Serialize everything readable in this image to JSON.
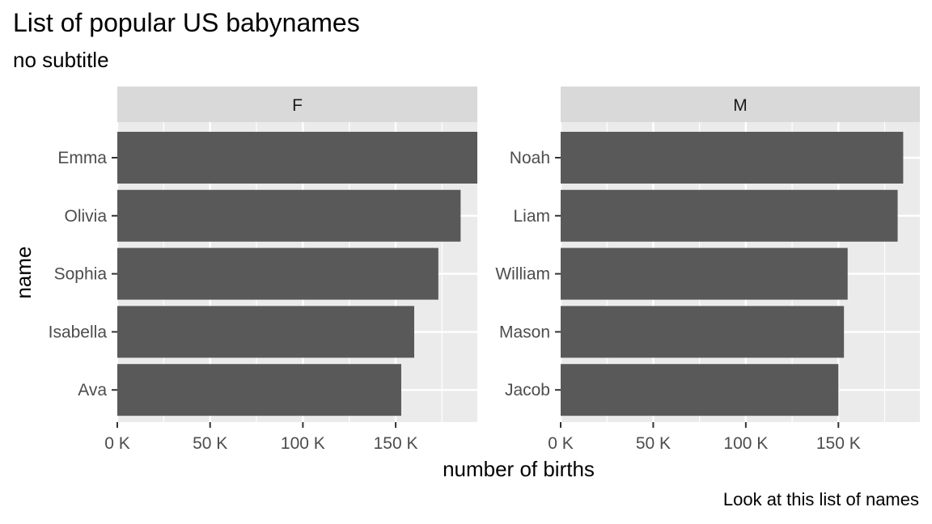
{
  "chart_data": {
    "type": "bar",
    "orientation": "horizontal",
    "title": "List of popular US babynames",
    "subtitle": "no subtitle",
    "caption": "Look at this list of names",
    "xlabel": "number of births",
    "ylabel": "name",
    "xlim": [
      0,
      194000
    ],
    "x_ticks": [
      0,
      50000,
      100000,
      150000
    ],
    "x_tick_labels": [
      "0 K",
      "50 K",
      "100 K",
      "150 K"
    ],
    "grid": true,
    "legend": "none",
    "colors": {
      "bar": "#595959",
      "panel": "#ebebeb",
      "strip": "#d9d9d9",
      "grid": "#ffffff"
    },
    "facets": [
      {
        "label": "F",
        "categories": [
          "Emma",
          "Olivia",
          "Sophia",
          "Isabella",
          "Ava"
        ],
        "values": [
          194000,
          185000,
          173000,
          160000,
          153000
        ]
      },
      {
        "label": "M",
        "categories": [
          "Noah",
          "Liam",
          "William",
          "Mason",
          "Jacob"
        ],
        "values": [
          185000,
          182000,
          155000,
          153000,
          150000
        ]
      }
    ]
  }
}
